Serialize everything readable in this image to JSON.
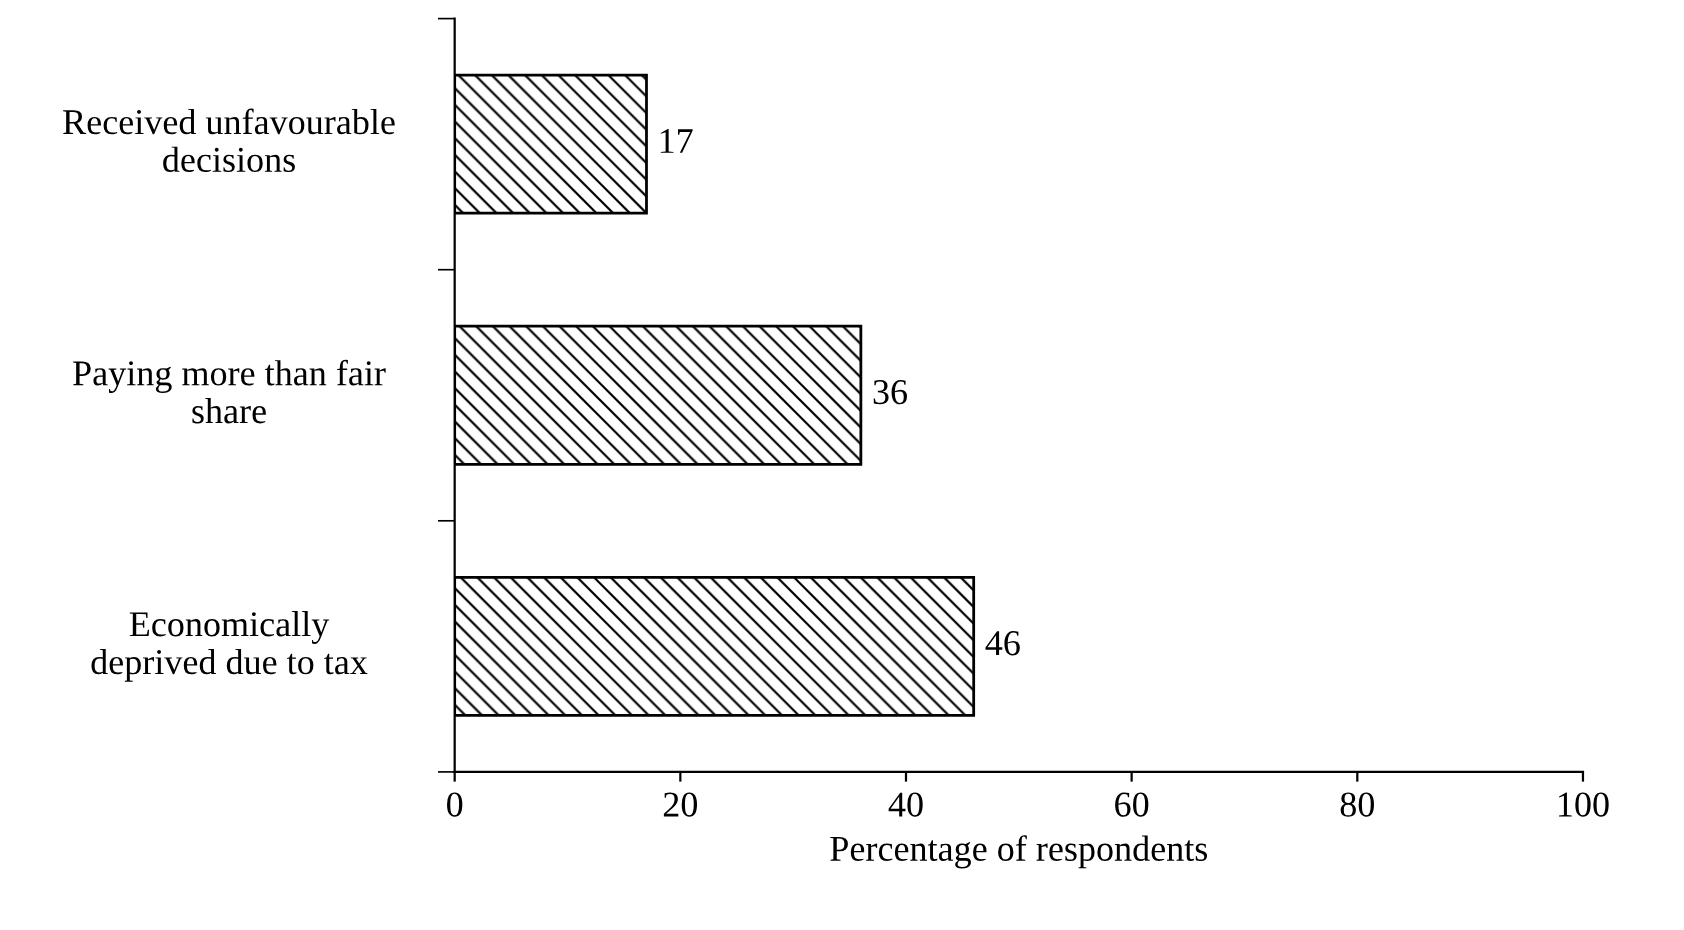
{
  "chart_data": {
    "type": "bar",
    "orientation": "horizontal",
    "categories": [
      "Received unfavourable\ndecisions",
      "Paying more than fair\nshare",
      "Economically\ndeprived due to tax"
    ],
    "values": [
      17,
      36,
      46
    ],
    "color": "#000000",
    "xlabel": "Percentage of respondents",
    "xlim": [
      0,
      100
    ],
    "xticks": [
      0,
      20,
      40,
      60,
      80,
      100
    ],
    "data_labels": true,
    "grid": false,
    "legend": false
  }
}
